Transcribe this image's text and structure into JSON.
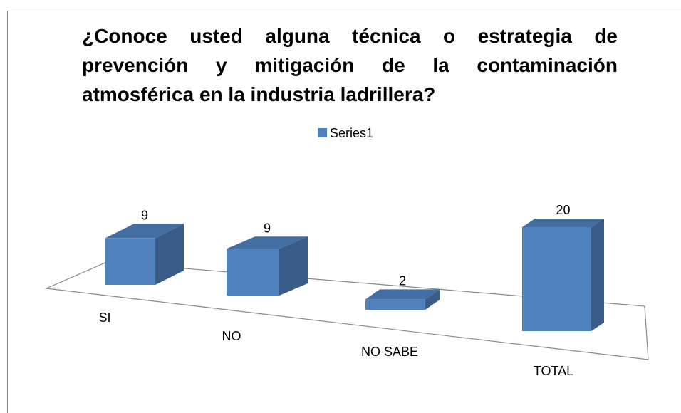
{
  "chart_data": {
    "type": "bar3d",
    "title": "¿Conoce usted alguna técnica o estrategia de prevención y mitigación de la contaminación atmosférica en la industria ladrillera?",
    "categories": [
      "SI",
      "NO",
      "NO SABE",
      "TOTAL"
    ],
    "series": [
      {
        "name": "Series1",
        "color": "#4f81bd",
        "values": [
          9,
          9,
          2,
          20
        ]
      }
    ]
  }
}
